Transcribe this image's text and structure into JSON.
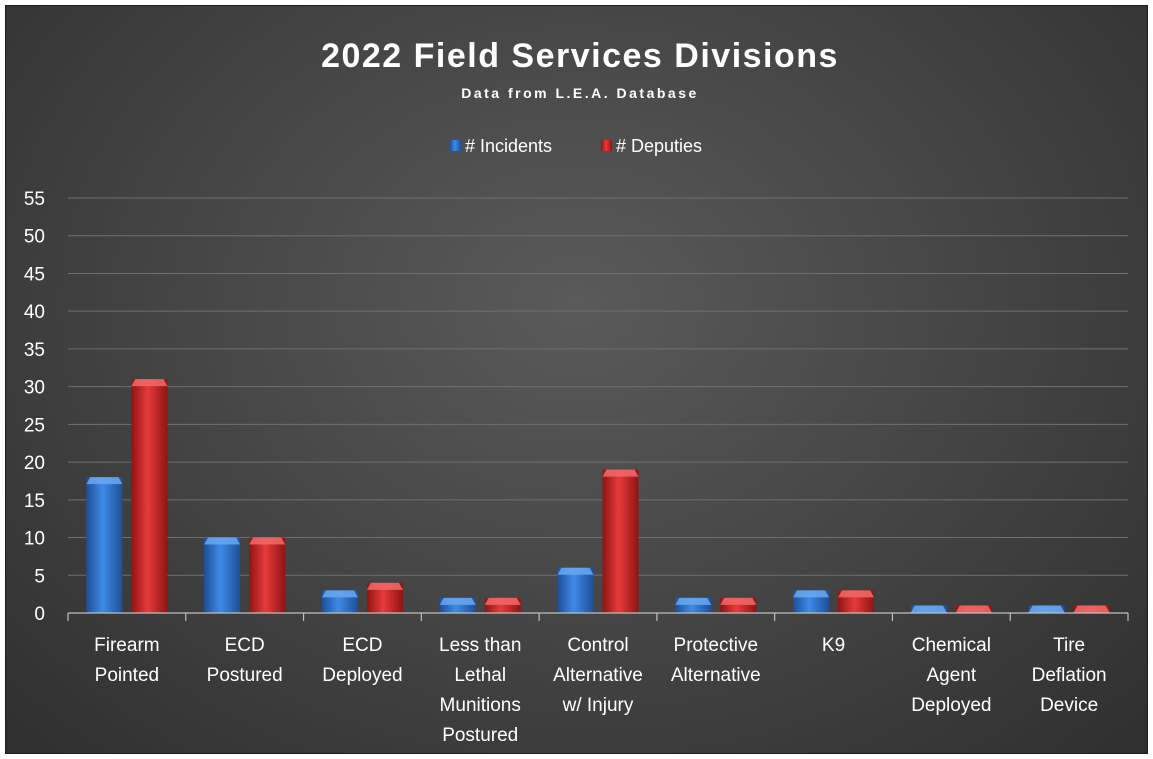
{
  "chart_data": {
    "type": "bar",
    "title": "2022 Field Services Divisions",
    "subtitle": "Data from L.E.A. Database",
    "xlabel": "",
    "ylabel": "",
    "ylim": [
      0,
      55
    ],
    "yticks": [
      "0",
      "5",
      "10",
      "15",
      "20",
      "25",
      "30",
      "35",
      "40",
      "45",
      "50",
      "55"
    ],
    "grid": true,
    "legend_position": "top",
    "categories": [
      [
        "Firearm",
        "Pointed"
      ],
      [
        "ECD",
        "Postured"
      ],
      [
        "ECD",
        "Deployed"
      ],
      [
        "Less than",
        "Lethal",
        "Munitions",
        "Postured"
      ],
      [
        "Control",
        "Alternative",
        "w/ Injury"
      ],
      [
        "Protective",
        "Alternative"
      ],
      [
        "K9"
      ],
      [
        "Chemical",
        "Agent",
        "Deployed"
      ],
      [
        "Tire",
        "Deflation",
        "Device"
      ]
    ],
    "series": [
      {
        "name": "# Incidents",
        "color": "#2e75d6",
        "values": [
          18,
          10,
          3,
          2,
          6,
          2,
          3,
          1,
          1
        ]
      },
      {
        "name": "# Deputies",
        "color": "#d42a2a",
        "values": [
          31,
          10,
          4,
          2,
          19,
          2,
          3,
          1,
          1
        ]
      }
    ]
  }
}
